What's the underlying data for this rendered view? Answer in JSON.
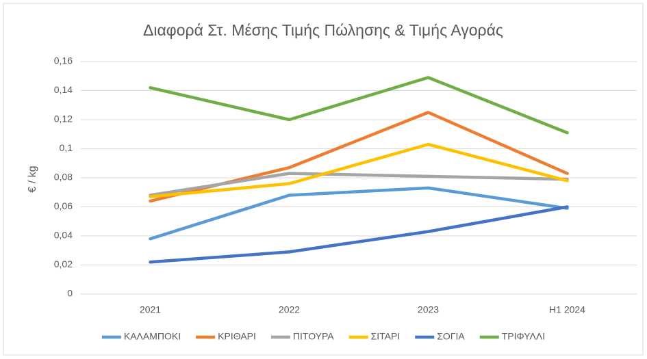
{
  "chart_data": {
    "type": "line",
    "title": "Διαφορά Στ. Μέσης Τιμής Πώλησης & Τιμής Αγοράς",
    "y_label": "€ / kg",
    "categories": [
      "2021",
      "2022",
      "2023",
      "H1 2024"
    ],
    "series": [
      {
        "name": "ΚΑΛΑΜΠΟΚΙ",
        "color": "#5b9bd5",
        "values": [
          0.038,
          0.068,
          0.073,
          0.059
        ]
      },
      {
        "name": "ΚΡΙΘΑΡΙ",
        "color": "#ed7d31",
        "values": [
          0.064,
          0.087,
          0.125,
          0.083
        ]
      },
      {
        "name": "ΠΙΤΟΥΡΑ",
        "color": "#a5a5a5",
        "values": [
          0.068,
          0.083,
          0.081,
          0.079
        ]
      },
      {
        "name": "ΣΙΤΑΡΙ",
        "color": "#ffc000",
        "values": [
          0.067,
          0.076,
          0.103,
          0.078
        ]
      },
      {
        "name": "ΣΟΓΙΑ",
        "color": "#4472c4",
        "values": [
          0.022,
          0.029,
          0.043,
          0.06
        ]
      },
      {
        "name": "ΤΡΙΦΥΛΛΙ",
        "color": "#70ad47",
        "values": [
          0.142,
          0.12,
          0.149,
          0.111
        ]
      }
    ],
    "ylim": [
      0,
      0.16
    ],
    "yticks": [
      0,
      {
        "value": 0.02,
        "label": "0,02"
      },
      {
        "value": 0.04,
        "label": "0,04"
      },
      {
        "value": 0.06,
        "label": "0,06"
      },
      {
        "value": 0.08,
        "label": "0,08"
      },
      {
        "value": 0.1,
        "label": "0,1"
      },
      {
        "value": 0.12,
        "label": "0,12"
      },
      {
        "value": 0.14,
        "label": "0,14"
      },
      {
        "value": 0.16,
        "label": "0,16"
      }
    ],
    "grid": true,
    "legend": "bottom"
  }
}
